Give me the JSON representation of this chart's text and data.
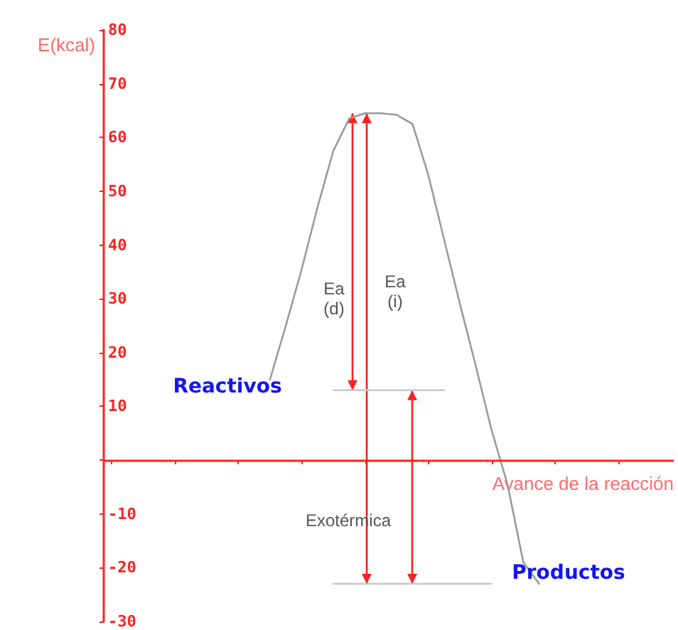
{
  "chart_data": {
    "type": "line",
    "xlabel": "Avance de la reacción",
    "ylabel": "E(kcal)",
    "categories": [
      null,
      null,
      null,
      null,
      null,
      null,
      null,
      null,
      null,
      null,
      null,
      null,
      null,
      null,
      null,
      null,
      null,
      null,
      null,
      null,
      null,
      null,
      null,
      null,
      null,
      null,
      null,
      null,
      null,
      null,
      null,
      null,
      null,
      null,
      null,
      null
    ],
    "ylim": [
      -30,
      80
    ],
    "yticks": [
      -30,
      -20,
      -10,
      {
        "value": 0,
        "label": null
      },
      10,
      20,
      30,
      40,
      50,
      60,
      70,
      80
    ],
    "tick_labels": "y",
    "grid": false,
    "marker": "none",
    "ref_lines": [
      {
        "axis": "y",
        "value": 0,
        "color": "#ff2020"
      }
    ],
    "series": [
      {
        "color": "#9a9a9a",
        "values": [
          null,
          null,
          null,
          null,
          null,
          null,
          null,
          null,
          null,
          null,
          15,
          25,
          35.5,
          47,
          57.5,
          63.5,
          64.5,
          64.5,
          64.2,
          62.5,
          53,
          41,
          29,
          17.5,
          5.5,
          -4.5,
          -19,
          -23,
          null,
          null,
          null,
          null,
          null,
          null,
          null,
          null
        ]
      },
      {
        "color": "#c8c8c8",
        "values": [
          null,
          null,
          null,
          null,
          null,
          null,
          null,
          null,
          null,
          null,
          null,
          null,
          null,
          null,
          13,
          13,
          13,
          13,
          13,
          13,
          13,
          13,
          null,
          null,
          null,
          null,
          null,
          null,
          null,
          null,
          null,
          null,
          null,
          null,
          null,
          null
        ]
      },
      {
        "color": "#c8c8c8",
        "values": [
          null,
          null,
          null,
          null,
          null,
          null,
          null,
          null,
          null,
          null,
          null,
          null,
          null,
          null,
          -23,
          -23,
          -23,
          -23,
          -23,
          -23,
          -23,
          -23,
          -23,
          -23,
          -23,
          null,
          null,
          null,
          null,
          null,
          null,
          null,
          null,
          null,
          null,
          null
        ]
      }
    ],
    "annotations": [
      "Reactivos",
      "Productos",
      "Ea\n(d)",
      "Ea\n(i)",
      "Exotérmica"
    ]
  }
}
